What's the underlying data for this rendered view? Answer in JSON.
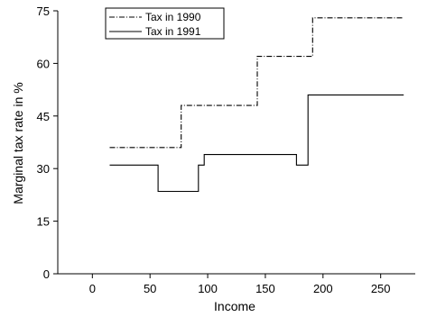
{
  "chart_data": {
    "type": "line",
    "step": true,
    "xlabel": "Income",
    "ylabel": "Marginal tax rate in %",
    "xlim": [
      -30,
      280
    ],
    "ylim": [
      0,
      75
    ],
    "xticks": [
      0,
      50,
      100,
      150,
      200,
      250
    ],
    "yticks": [
      0,
      15,
      30,
      45,
      60,
      75
    ],
    "grid": false,
    "legend_position": "top-left",
    "series": [
      {
        "name": "Tax in 1990",
        "line_style": "dash-dot",
        "color": "#000000",
        "points": [
          [
            15,
            36
          ],
          [
            77,
            36
          ],
          [
            77,
            48
          ],
          [
            143,
            48
          ],
          [
            143,
            62
          ],
          [
            191,
            62
          ],
          [
            191,
            73
          ],
          [
            270,
            73
          ]
        ]
      },
      {
        "name": "Tax in 1991",
        "line_style": "solid",
        "color": "#000000",
        "points": [
          [
            15,
            31
          ],
          [
            57,
            31
          ],
          [
            57,
            23.5
          ],
          [
            92,
            23.5
          ],
          [
            92,
            31
          ],
          [
            97,
            31
          ],
          [
            97,
            34
          ],
          [
            177,
            34
          ],
          [
            177,
            31
          ],
          [
            187,
            31
          ],
          [
            187,
            51
          ],
          [
            270,
            51
          ]
        ]
      }
    ]
  }
}
